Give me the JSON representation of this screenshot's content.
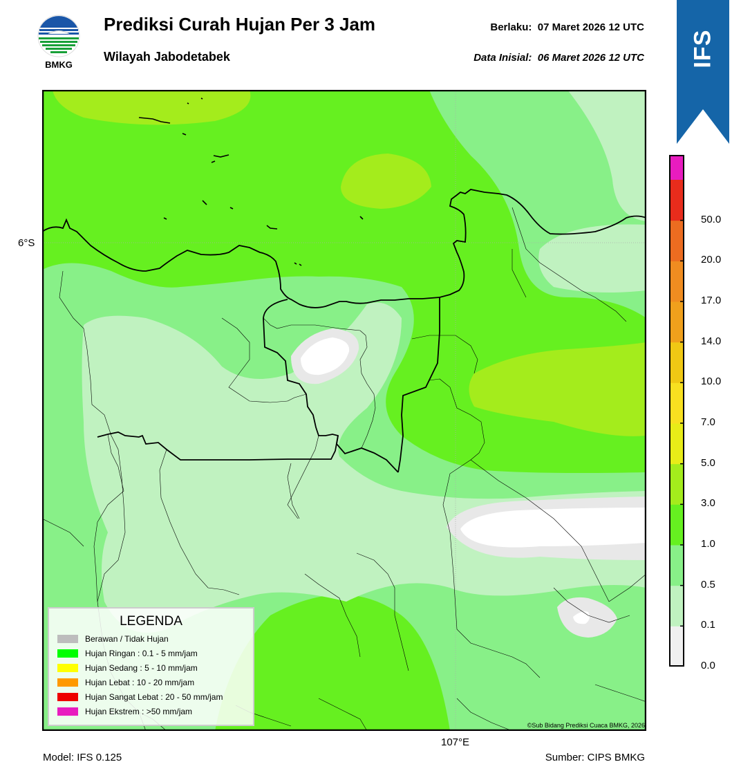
{
  "header": {
    "title": "Prediksi Curah Hujan Per 3 Jam",
    "subtitle": "Wilayah Jabodetabek",
    "valid_label": "Berlaku:",
    "valid_value": "07 Maret 2026 12 UTC",
    "init_label": "Data Inisial:",
    "init_value": "06 Maret 2026 12 UTC"
  },
  "logo": {
    "text": "BMKG",
    "icon": "bmkg-logo"
  },
  "ribbon": {
    "label": "IFS",
    "color": "#1565a8"
  },
  "map": {
    "lat_label": "6°S",
    "lon_label": "107°E",
    "copyright": "©Sub Bidang Prediksi Cuaca BMKG, 2026"
  },
  "footer": {
    "model": "Model: IFS 0.125",
    "source": "Sumber: CIPS BMKG"
  },
  "legend": {
    "title": "LEGENDA",
    "items": [
      {
        "label": "Berawan / Tidak Hujan",
        "color": "#bdbdbd"
      },
      {
        "label": "Hujan Ringan : 0.1 - 5 mm/jam",
        "color": "#00ff00"
      },
      {
        "label": "Hujan Sedang : 5 - 10 mm/jam",
        "color": "#ffff00"
      },
      {
        "label": "Hujan Lebat : 10 - 20 mm/jam",
        "color": "#ff9900"
      },
      {
        "label": "Hujan Sangat Lebat : 20 - 50 mm/jam",
        "color": "#ee0000"
      },
      {
        "label": "Hujan Ekstrem : >50 mm/jam",
        "color": "#e81cbf"
      }
    ]
  },
  "colorbar": {
    "ticks": [
      "0.0",
      "0.1",
      "0.5",
      "1.0",
      "3.0",
      "5.0",
      "7.0",
      "10.0",
      "14.0",
      "17.0",
      "20.0",
      "50.0"
    ],
    "colors": [
      "#f0f0f0",
      "#c0f2c0",
      "#88f088",
      "#66f020",
      "#a4ec1c",
      "#e8ec18",
      "#f8e020",
      "#f0c814",
      "#f0a01c",
      "#f08c20",
      "#ec6c20",
      "#e82c1c"
    ],
    "top_color": "#e81cbf"
  }
}
